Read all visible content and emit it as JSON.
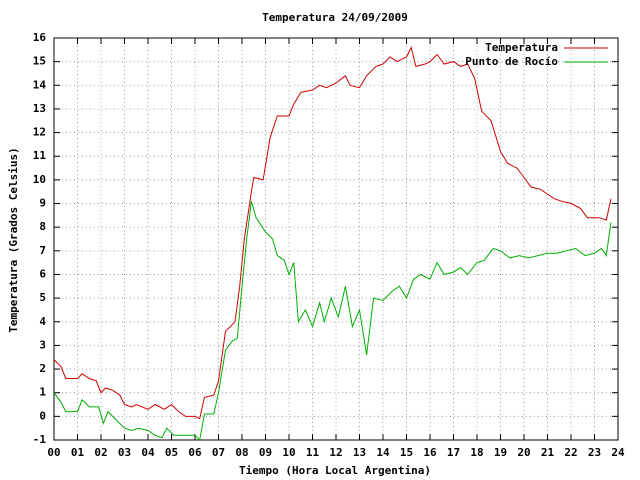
{
  "chart_data": {
    "type": "line",
    "title": "Temperatura 24/09/2009",
    "x_label": "Tiempo (Hora Local Argentina)",
    "y_label": "Temperatura (Grados Celsius)",
    "xlim": [
      0,
      24
    ],
    "ylim": [
      -1,
      16
    ],
    "xticks": [
      {
        "value": 0,
        "label": "00"
      },
      {
        "value": 1,
        "label": "01"
      },
      {
        "value": 2,
        "label": "02"
      },
      {
        "value": 3,
        "label": "03"
      },
      {
        "value": 4,
        "label": "04"
      },
      {
        "value": 5,
        "label": "05"
      },
      {
        "value": 6,
        "label": "06"
      },
      {
        "value": 7,
        "label": "07"
      },
      {
        "value": 8,
        "label": "08"
      },
      {
        "value": 9,
        "label": "09"
      },
      10,
      11,
      12,
      13,
      14,
      15,
      16,
      17,
      18,
      19,
      20,
      21,
      22,
      23,
      24
    ],
    "yticks": [
      -1,
      0,
      1,
      2,
      3,
      4,
      5,
      6,
      7,
      8,
      9,
      10,
      11,
      12,
      13,
      14,
      15,
      16
    ],
    "grid": true,
    "legend": "top-right",
    "series": [
      {
        "name": "Temperatura",
        "color": "#d00000",
        "x": [
          0,
          0.3,
          0.5,
          1.0,
          1.2,
          1.5,
          1.8,
          2.0,
          2.2,
          2.5,
          2.8,
          3.0,
          3.3,
          3.5,
          4.0,
          4.3,
          4.7,
          5.0,
          5.3,
          5.6,
          6.0,
          6.2,
          6.4,
          6.8,
          7.0,
          7.3,
          7.5,
          7.7,
          7.9,
          8.1,
          8.4,
          8.5,
          8.9,
          9.2,
          9.5,
          10.0,
          10.2,
          10.5,
          11.0,
          11.3,
          11.6,
          12.0,
          12.4,
          12.6,
          13.0,
          13.3,
          13.7,
          14.0,
          14.3,
          14.6,
          15.0,
          15.2,
          15.4,
          15.8,
          16.0,
          16.3,
          16.6,
          17.0,
          17.3,
          17.6,
          17.9,
          18.2,
          18.6,
          19.0,
          19.3,
          19.7,
          20.0,
          20.3,
          20.7,
          21.0,
          21.3,
          21.6,
          22.0,
          22.4,
          22.7,
          23.2,
          23.5,
          23.7
        ],
        "values": [
          2.4,
          2.1,
          1.6,
          1.6,
          1.8,
          1.6,
          1.5,
          1.0,
          1.2,
          1.1,
          0.9,
          0.5,
          0.4,
          0.5,
          0.3,
          0.5,
          0.3,
          0.5,
          0.2,
          0,
          0,
          -0.1,
          0.8,
          0.9,
          1.5,
          3.6,
          3.8,
          4.0,
          5.5,
          7.5,
          9.5,
          10.1,
          10.0,
          11.8,
          12.7,
          12.7,
          13.2,
          13.7,
          13.8,
          14.0,
          13.9,
          14.1,
          14.4,
          14.0,
          13.9,
          14.4,
          14.8,
          14.9,
          15.2,
          15.0,
          15.2,
          15.6,
          14.8,
          14.9,
          15.0,
          15.3,
          14.9,
          15.0,
          14.8,
          14.9,
          14.3,
          12.9,
          12.5,
          11.2,
          10.7,
          10.5,
          10.1,
          9.7,
          9.6,
          9.4,
          9.2,
          9.1,
          9.0,
          8.8,
          8.4,
          8.4,
          8.3,
          9.2
        ]
      },
      {
        "name": "Punto de Rocío",
        "color": "#00b000",
        "x": [
          0,
          0.3,
          0.5,
          1.0,
          1.2,
          1.5,
          1.9,
          2.1,
          2.3,
          2.7,
          3.0,
          3.3,
          3.6,
          4.0,
          4.3,
          4.6,
          4.8,
          5.1,
          5.5,
          6.0,
          6.2,
          6.4,
          6.8,
          7.0,
          7.3,
          7.6,
          7.8,
          8.0,
          8.2,
          8.4,
          8.6,
          9.0,
          9.3,
          9.5,
          9.8,
          10.0,
          10.2,
          10.4,
          10.7,
          11.0,
          11.3,
          11.5,
          11.8,
          12.1,
          12.4,
          12.7,
          13.0,
          13.3,
          13.6,
          14.0,
          14.4,
          14.7,
          15.0,
          15.3,
          15.6,
          16.0,
          16.3,
          16.6,
          17.0,
          17.3,
          17.6,
          18.0,
          18.3,
          18.7,
          19.0,
          19.4,
          19.8,
          20.2,
          20.6,
          21.0,
          21.4,
          21.8,
          22.2,
          22.6,
          23.0,
          23.3,
          23.5,
          23.7
        ],
        "values": [
          1.0,
          0.6,
          0.2,
          0.2,
          0.7,
          0.4,
          0.4,
          -0.3,
          0.2,
          -0.2,
          -0.5,
          -0.6,
          -0.5,
          -0.6,
          -0.8,
          -0.9,
          -0.5,
          -0.8,
          -0.8,
          -0.8,
          -1.0,
          0.1,
          0.1,
          1.0,
          2.8,
          3.2,
          3.3,
          5.5,
          7.5,
          9.1,
          8.4,
          7.8,
          7.5,
          6.8,
          6.6,
          6.0,
          6.5,
          4.0,
          4.5,
          3.8,
          4.8,
          4.0,
          5.0,
          4.2,
          5.5,
          3.8,
          4.5,
          2.6,
          5.0,
          4.9,
          5.3,
          5.5,
          5.0,
          5.8,
          6.0,
          5.8,
          6.5,
          6.0,
          6.1,
          6.3,
          6.0,
          6.5,
          6.6,
          7.1,
          7.0,
          6.7,
          6.8,
          6.7,
          6.8,
          6.9,
          6.9,
          7.0,
          7.1,
          6.8,
          6.9,
          7.1,
          6.8,
          8.2
        ]
      }
    ]
  }
}
